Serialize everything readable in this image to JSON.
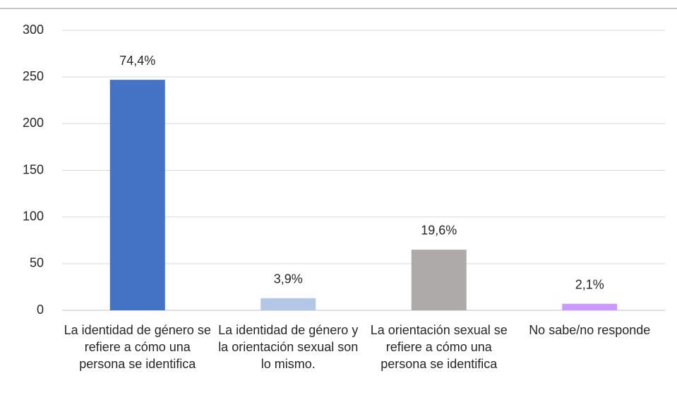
{
  "chart_data": {
    "type": "bar",
    "categories": [
      "La identidad de género se refiere a cómo una persona se identifica",
      "La identidad de género y la orientación sexual son lo mismo.",
      "La orientación sexual se refiere a cómo una persona se identifica",
      "No sabe/no responde"
    ],
    "values": [
      247,
      13,
      65,
      7
    ],
    "value_labels": [
      "74,4%",
      "3,9%",
      "19,6%",
      "2,1%"
    ],
    "colors": [
      "#4472c4",
      "#b4c7e7",
      "#aeaaaa",
      "#cc99ff"
    ],
    "ylim": [
      0,
      300
    ],
    "yticks": [
      0,
      50,
      100,
      150,
      200,
      250,
      300
    ],
    "grid": true
  }
}
